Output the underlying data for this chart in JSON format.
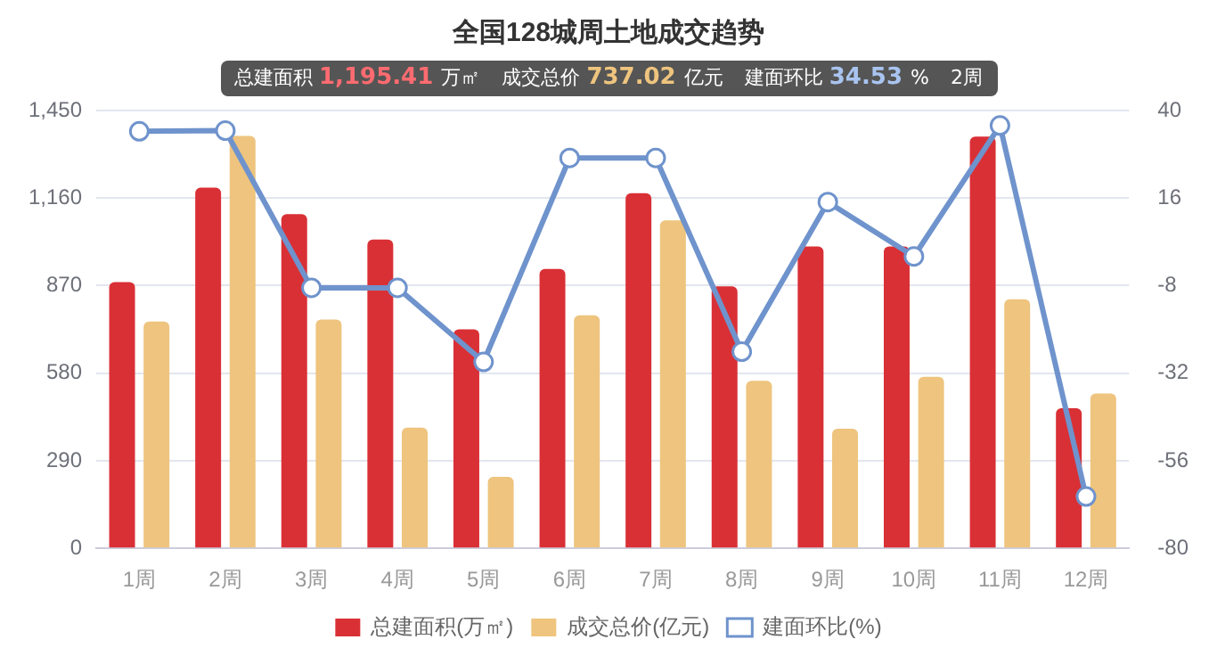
{
  "chart_data": {
    "type": "bar",
    "title": "全国128城周土地成交趋势",
    "categories": [
      "1周",
      "2周",
      "3周",
      "4周",
      "5周",
      "6周",
      "7周",
      "8周",
      "9周",
      "10周",
      "11周",
      "12周"
    ],
    "series": [
      {
        "name": "总建面积(万㎡)",
        "color": "#d93036",
        "values": [
          882,
          1195,
          1107,
          1023,
          725,
          925,
          1176,
          868,
          1000,
          1000,
          1364,
          464
        ]
      },
      {
        "name": "成交总价(亿元)",
        "color": "#eec47e",
        "values": [
          751,
          1366,
          758,
          400,
          237,
          772,
          1086,
          555,
          396,
          568,
          825,
          513
        ]
      },
      {
        "name": "建面环比(%)",
        "type": "line",
        "axis": "y2",
        "color": "#6f93cc",
        "values": [
          34.3,
          34.5,
          -8.6,
          -8.6,
          -28.9,
          27,
          27,
          -26.1,
          14.9,
          0,
          35.9,
          -65.8
        ]
      }
    ],
    "ylim": [
      0,
      1450
    ],
    "yticks": [
      0,
      290,
      580,
      870,
      {
        "value": 1160,
        "label": "1,160"
      },
      {
        "value": 1450,
        "label": "1,450"
      }
    ],
    "y2lim": [
      -80,
      40
    ],
    "y2ticks": [
      -80,
      -56,
      -32,
      -8,
      16,
      40
    ],
    "grid": "y",
    "legend": "bottom",
    "marker": "circle",
    "annotations": [
      "总建面积 1,195.41 万㎡",
      "成交总价 737.02 亿元",
      "建面环比 34.53 %",
      "2周"
    ]
  }
}
